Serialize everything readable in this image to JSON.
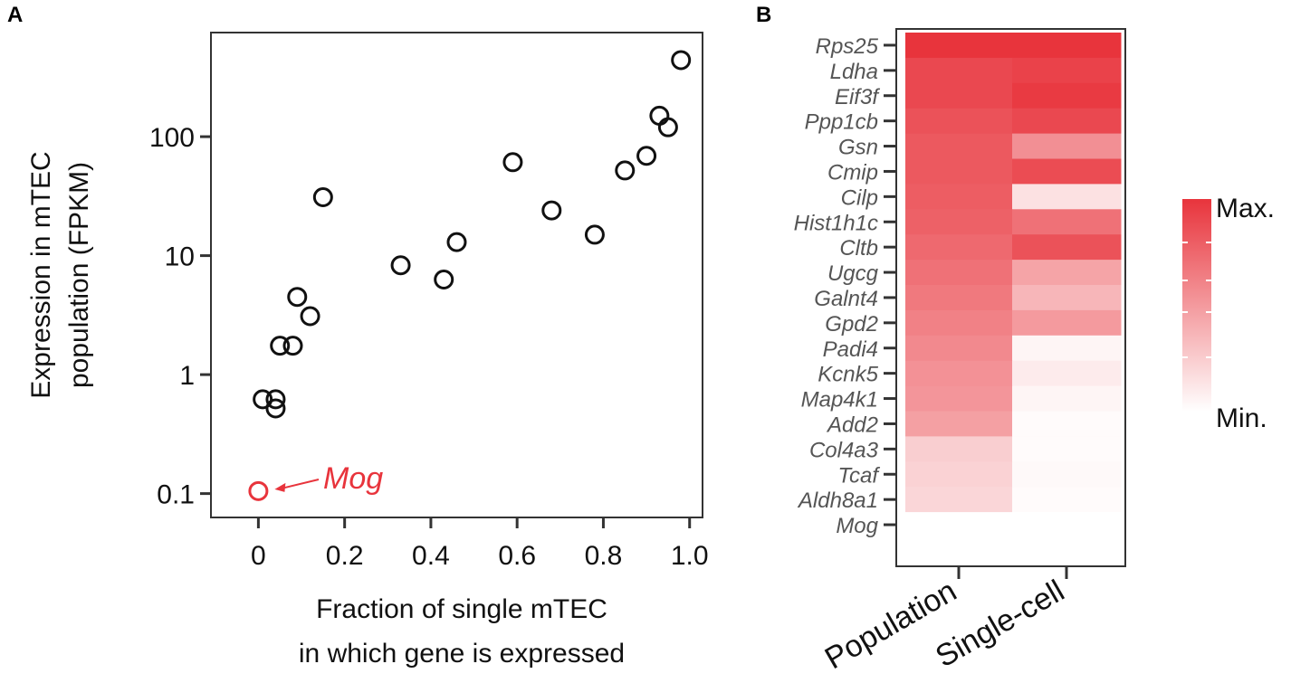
{
  "panels": {
    "a": "A",
    "b": "B"
  },
  "colors": {
    "axis": "#333333",
    "points": "#111111",
    "highlight": "#e8343c",
    "heat_max": "#e8343c",
    "heat_min": "#ffffff"
  },
  "chart_data": [
    {
      "type": "scatter",
      "xlabel_lines": [
        "Fraction of single mTEC",
        "in which gene is expressed"
      ],
      "ylabel_lines": [
        "Expression in mTEC",
        "population (FPKM)"
      ],
      "x_ticks": [
        {
          "value": 0,
          "label": "0"
        },
        {
          "value": 0.2,
          "label": "0.2"
        },
        {
          "value": 0.4,
          "label": "0.4"
        },
        {
          "value": 0.6,
          "label": "0.6"
        },
        {
          "value": 0.8,
          "label": "0.8"
        },
        {
          "value": 1.0,
          "label": "1.0"
        }
      ],
      "y_ticks": [
        {
          "value": 0.1,
          "label": "0.1"
        },
        {
          "value": 1,
          "label": "1"
        },
        {
          "value": 10,
          "label": "10"
        },
        {
          "value": 100,
          "label": "100"
        }
      ],
      "xlim": [
        -0.11,
        1.03
      ],
      "ylim": [
        0.063,
        750
      ],
      "yscale": "log",
      "points": [
        {
          "x": 0.01,
          "y": 0.62
        },
        {
          "x": 0.04,
          "y": 0.62
        },
        {
          "x": 0.04,
          "y": 0.52
        },
        {
          "x": 0.05,
          "y": 1.75
        },
        {
          "x": 0.08,
          "y": 1.75
        },
        {
          "x": 0.09,
          "y": 4.5
        },
        {
          "x": 0.12,
          "y": 3.1
        },
        {
          "x": 0.15,
          "y": 31
        },
        {
          "x": 0.33,
          "y": 8.3
        },
        {
          "x": 0.43,
          "y": 6.3
        },
        {
          "x": 0.46,
          "y": 13
        },
        {
          "x": 0.59,
          "y": 61
        },
        {
          "x": 0.68,
          "y": 24
        },
        {
          "x": 0.78,
          "y": 15
        },
        {
          "x": 0.85,
          "y": 52
        },
        {
          "x": 0.9,
          "y": 69
        },
        {
          "x": 0.93,
          "y": 150
        },
        {
          "x": 0.95,
          "y": 120
        },
        {
          "x": 0.98,
          "y": 440
        }
      ],
      "highlight": {
        "x": 0.0,
        "y": 0.105,
        "label": "Mog"
      }
    },
    {
      "type": "heatmap",
      "columns": [
        "Population",
        "Single-cell"
      ],
      "rows": [
        "Rps25",
        "Ldha",
        "Eif3f",
        "Ppp1cb",
        "Gsn",
        "Cmip",
        "Cilp",
        "Hist1h1c",
        "Cltb",
        "Ugcg",
        "Galnt4",
        "Gpd2",
        "Padi4",
        "Kcnk5",
        "Map4k1",
        "Add2",
        "Col4a3",
        "Tcaf",
        "Aldh8a1",
        "Mog"
      ],
      "values": [
        [
          1.0,
          1.0
        ],
        [
          0.9,
          0.93
        ],
        [
          0.9,
          0.97
        ],
        [
          0.85,
          0.9
        ],
        [
          0.82,
          0.55
        ],
        [
          0.82,
          0.88
        ],
        [
          0.8,
          0.15
        ],
        [
          0.78,
          0.7
        ],
        [
          0.74,
          0.85
        ],
        [
          0.7,
          0.45
        ],
        [
          0.66,
          0.36
        ],
        [
          0.62,
          0.5
        ],
        [
          0.58,
          0.05
        ],
        [
          0.54,
          0.1
        ],
        [
          0.52,
          0.05
        ],
        [
          0.47,
          0.02
        ],
        [
          0.24,
          0.02
        ],
        [
          0.22,
          0.03
        ],
        [
          0.2,
          0.02
        ],
        [
          0.0,
          0.0
        ]
      ],
      "legend": {
        "max_label": "Max.",
        "min_label": "Min."
      }
    }
  ]
}
